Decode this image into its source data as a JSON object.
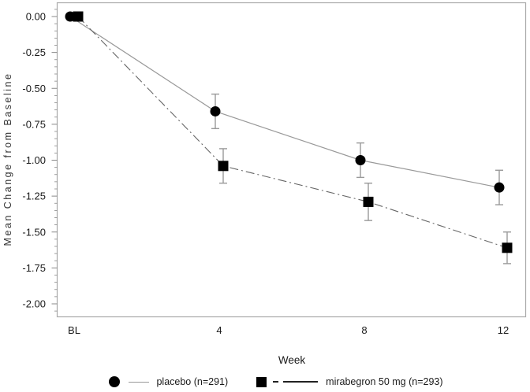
{
  "chart_data": {
    "type": "line",
    "title": "",
    "xlabel": "Week",
    "ylabel": "Mean Change from Baseline",
    "x_categories": [
      "BL",
      "4",
      "8",
      "12"
    ],
    "y_tick_labels": [
      "0.00",
      "-0.25",
      "-0.50",
      "-0.75",
      "-1.00",
      "-1.25",
      "-1.50",
      "-1.75",
      "-2.00"
    ],
    "ylim": [
      0.0,
      -2.0
    ],
    "y_major_step": 0.25,
    "y_minor_step": 0.05,
    "grid": false,
    "frame": true,
    "legend_position": "bottom",
    "error_bars": true,
    "series": [
      {
        "name": "placebo",
        "label": "placebo (n=291)",
        "marker": "circle",
        "line_style": "solid",
        "values": [
          0.0,
          -0.66,
          -1.0,
          -1.19
        ],
        "errors": [
          0,
          0.12,
          0.12,
          0.12
        ]
      },
      {
        "name": "mirabegron-50mg",
        "label": "mirabegron 50 mg (n=293)",
        "marker": "square",
        "line_style": "dash-dot",
        "values": [
          0.0,
          -1.04,
          -1.29,
          -1.61
        ],
        "errors": [
          0,
          0.12,
          0.13,
          0.11
        ]
      }
    ]
  },
  "colors": {
    "marker": "#000000",
    "placebo_line": "#999999",
    "mirabegron_line": "#666666",
    "error_bar": "#999999",
    "frame": "#aaaaaa",
    "tick": "#888888",
    "text": "#1a1a1a"
  }
}
